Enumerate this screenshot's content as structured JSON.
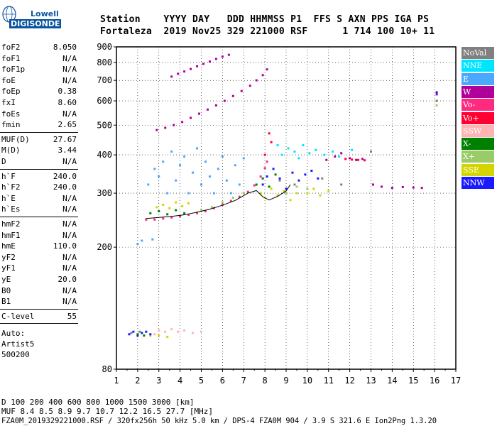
{
  "logo": {
    "brand_top": "Lowell",
    "brand_bottom": "DIGISONDE"
  },
  "header": {
    "labels": "Station    YYYY DAY   DDD HHMMSS P1  FFS S AXN PPS IGA PS",
    "values": "Fortaleza  2019 Nov25 329 221000 RSF      1 714 100 10+ 11"
  },
  "params": {
    "group1": [
      {
        "name": "foF2",
        "value": "8.050"
      },
      {
        "name": "foF1",
        "value": "N/A"
      },
      {
        "name": "foF1p",
        "value": "N/A"
      },
      {
        "name": "foE",
        "value": "N/A"
      },
      {
        "name": "foEp",
        "value": "0.38"
      },
      {
        "name": "fxI",
        "value": "8.60"
      },
      {
        "name": "foEs",
        "value": "N/A"
      },
      {
        "name": "fmin",
        "value": "2.65"
      }
    ],
    "group2": [
      {
        "name": "MUF(D)",
        "value": "27.67"
      },
      {
        "name": "M(D)",
        "value": "3.44"
      },
      {
        "name": "D",
        "value": "N/A"
      }
    ],
    "group3": [
      {
        "name": "h`F",
        "value": "240.0"
      },
      {
        "name": "h`F2",
        "value": "240.0"
      },
      {
        "name": "h`E",
        "value": "N/A"
      },
      {
        "name": "h`Es",
        "value": "N/A"
      }
    ],
    "group4": [
      {
        "name": "hmF2",
        "value": "N/A"
      },
      {
        "name": "hmF1",
        "value": "N/A"
      },
      {
        "name": "hmE",
        "value": "110.0"
      },
      {
        "name": "yF2",
        "value": "N/A"
      },
      {
        "name": "yF1",
        "value": "N/A"
      },
      {
        "name": "yE",
        "value": "20.0"
      },
      {
        "name": "B0",
        "value": "N/A"
      },
      {
        "name": "B1",
        "value": "N/A"
      }
    ],
    "clevel": {
      "name": "C-level",
      "value": "55"
    },
    "auto": [
      "Auto:",
      "Artist5",
      "500200"
    ]
  },
  "legend": [
    {
      "label": "NoVal",
      "color": "#808080",
      "text_color": "#ffffff"
    },
    {
      "label": "NNE",
      "color": "#00e5ff",
      "text_color": "#ffffff"
    },
    {
      "label": "E",
      "color": "#4aa8ff",
      "text_color": "#ffffff"
    },
    {
      "label": "W",
      "color": "#b0009a",
      "text_color": "#ffffff"
    },
    {
      "label": "Vo-",
      "color": "#ff2a7f",
      "text_color": "#ffffff"
    },
    {
      "label": "Vo+",
      "color": "#ff0033",
      "text_color": "#ffffff"
    },
    {
      "label": "SSW",
      "color": "#ffb3b3",
      "text_color": "#ffffff"
    },
    {
      "label": "X-",
      "color": "#008000",
      "text_color": "#ffffff"
    },
    {
      "label": "X+",
      "color": "#99cc66",
      "text_color": "#ffffff"
    },
    {
      "label": "SSE",
      "color": "#d4d400",
      "text_color": "#ffffff"
    },
    {
      "label": "NNW",
      "color": "#1a1aff",
      "text_color": "#ffffff"
    }
  ],
  "bottom": {
    "d_row": "D      100  200  400  600  800 1000 1500 3000 [km]",
    "muf_row": "MUF    8.4  8.5  8.9  9.7 10.7 12.2 16.5 27.7 [MHz]",
    "file_row": "FZA0M_2019329221000.RSF / 320fx256h 50 kHz 5.0 km / DPS-4 FZA0M 904 / 3.9 S 321.6 E   Ion2Png 1.3.20"
  },
  "chart_data": {
    "type": "scatter",
    "xlim": [
      1,
      17
    ],
    "ylim": [
      80,
      900
    ],
    "x_ticks": [
      "1",
      "2",
      "3",
      "4",
      "5",
      "6",
      "7",
      "8",
      "9",
      "10",
      "11",
      "12",
      "13",
      "14",
      "15",
      "16",
      "17"
    ],
    "y_ticks": [
      "80",
      "200",
      "300",
      "400",
      "500",
      "600",
      "700",
      "800",
      "900"
    ],
    "y_scale": "log",
    "grid": true,
    "series": [
      {
        "name": "W",
        "color": "#b0009a",
        "points": [
          [
            2.9,
            482
          ],
          [
            3.3,
            490
          ],
          [
            3.7,
            500
          ],
          [
            4.1,
            512
          ],
          [
            4.5,
            528
          ],
          [
            4.9,
            545
          ],
          [
            5.3,
            562
          ],
          [
            5.7,
            580
          ],
          [
            6.1,
            600
          ],
          [
            6.5,
            622
          ],
          [
            6.9,
            646
          ],
          [
            7.3,
            672
          ],
          [
            7.6,
            700
          ],
          [
            7.9,
            728
          ],
          [
            8.1,
            760
          ]
        ]
      },
      {
        "name": "W",
        "color": "#b0009a",
        "points": [
          [
            3.6,
            720
          ],
          [
            3.9,
            735
          ],
          [
            4.2,
            748
          ],
          [
            4.5,
            762
          ],
          [
            4.8,
            778
          ],
          [
            5.1,
            792
          ],
          [
            5.4,
            806
          ],
          [
            5.7,
            822
          ],
          [
            6.0,
            836
          ],
          [
            6.3,
            848
          ]
        ]
      },
      {
        "name": "Vo-",
        "color": "#ff2a7f",
        "points": [
          [
            2.4,
            246
          ],
          [
            2.8,
            246
          ],
          [
            3.2,
            248
          ],
          [
            3.6,
            250
          ],
          [
            4.0,
            252
          ],
          [
            4.4,
            255
          ],
          [
            4.8,
            258
          ],
          [
            5.2,
            262
          ],
          [
            5.6,
            268
          ],
          [
            6.0,
            275
          ],
          [
            6.4,
            283
          ],
          [
            6.8,
            292
          ],
          [
            7.2,
            303
          ],
          [
            7.5,
            318
          ],
          [
            7.8,
            340
          ],
          [
            8.0,
            362
          ],
          [
            8.1,
            380
          ]
        ]
      },
      {
        "name": "E",
        "color": "#4aa8ff",
        "points": [
          [
            2.5,
            320
          ],
          [
            2.8,
            360
          ],
          [
            3.0,
            340
          ],
          [
            3.2,
            380
          ],
          [
            3.4,
            300
          ],
          [
            3.6,
            410
          ],
          [
            3.8,
            330
          ],
          [
            4.0,
            370
          ],
          [
            4.2,
            395
          ],
          [
            4.4,
            300
          ],
          [
            4.6,
            350
          ],
          [
            4.8,
            420
          ],
          [
            5.0,
            320
          ],
          [
            5.2,
            380
          ],
          [
            5.4,
            340
          ],
          [
            5.6,
            300
          ],
          [
            5.8,
            360
          ],
          [
            6.0,
            395
          ],
          [
            6.2,
            330
          ],
          [
            6.4,
            300
          ],
          [
            6.6,
            370
          ],
          [
            6.8,
            320
          ],
          [
            7.0,
            390
          ],
          [
            2.2,
            210
          ],
          [
            2.0,
            205
          ],
          [
            2.7,
            212
          ]
        ]
      },
      {
        "name": "NNE",
        "color": "#00e5ff",
        "points": [
          [
            8.8,
            400
          ],
          [
            9.1,
            420
          ],
          [
            9.4,
            410
          ],
          [
            9.8,
            430
          ],
          [
            10.1,
            405
          ],
          [
            10.4,
            415
          ],
          [
            10.8,
            400
          ],
          [
            11.2,
            410
          ],
          [
            11.5,
            395
          ],
          [
            12.1,
            415
          ],
          [
            8.6,
            430
          ],
          [
            9.6,
            390
          ]
        ]
      },
      {
        "name": "SSE",
        "color": "#d4d400",
        "points": [
          [
            2.9,
            270
          ],
          [
            3.2,
            275
          ],
          [
            3.5,
            268
          ],
          [
            3.8,
            280
          ],
          [
            4.1,
            272
          ],
          [
            4.4,
            278
          ],
          [
            7.8,
            300
          ],
          [
            8.0,
            290
          ],
          [
            8.3,
            310
          ],
          [
            8.6,
            295
          ],
          [
            8.9,
            305
          ],
          [
            9.2,
            285
          ],
          [
            9.5,
            300
          ],
          [
            10.0,
            300
          ],
          [
            10.3,
            310
          ],
          [
            10.6,
            295
          ],
          [
            11.0,
            305
          ],
          [
            2.6,
            103
          ],
          [
            3.0,
            103
          ],
          [
            3.4,
            102
          ]
        ]
      },
      {
        "name": "NNW",
        "color": "#1a1aff",
        "points": [
          [
            1.6,
            104
          ],
          [
            1.8,
            106
          ],
          [
            2.0,
            103
          ],
          [
            2.2,
            105
          ],
          [
            2.4,
            106
          ],
          [
            2.6,
            104
          ],
          [
            7.9,
            320
          ],
          [
            8.1,
            340
          ],
          [
            8.4,
            360
          ],
          [
            8.7,
            335
          ],
          [
            9.0,
            310
          ],
          [
            9.3,
            350
          ],
          [
            9.6,
            330
          ],
          [
            9.9,
            345
          ],
          [
            10.2,
            355
          ],
          [
            10.5,
            335
          ],
          [
            16.1,
            640
          ]
        ]
      },
      {
        "name": "X-",
        "color": "#008000",
        "points": [
          [
            2.6,
            258
          ],
          [
            3.0,
            262
          ],
          [
            3.4,
            256
          ],
          [
            3.8,
            264
          ],
          [
            4.2,
            258
          ],
          [
            7.6,
            320
          ],
          [
            7.9,
            335
          ],
          [
            8.2,
            315
          ],
          [
            8.5,
            345
          ],
          [
            2.0,
            104
          ],
          [
            2.3,
            103
          ]
        ]
      },
      {
        "name": "X+",
        "color": "#99cc66",
        "points": [
          [
            5.0,
            265
          ],
          [
            5.5,
            270
          ],
          [
            6.0,
            280
          ],
          [
            6.5,
            290
          ],
          [
            7.0,
            300
          ],
          [
            9.0,
            300
          ],
          [
            9.5,
            315
          ],
          [
            10.0,
            310
          ],
          [
            16.1,
            580
          ]
        ]
      },
      {
        "name": "Vo+",
        "color": "#ff0033",
        "points": [
          [
            8.2,
            470
          ],
          [
            8.3,
            440
          ],
          [
            8.0,
            400
          ],
          [
            11.8,
            388
          ],
          [
            12.1,
            386
          ],
          [
            12.4,
            385
          ],
          [
            12.7,
            384
          ]
        ]
      },
      {
        "name": "SSW",
        "color": "#ffb3b3",
        "points": [
          [
            3.0,
            107
          ],
          [
            3.3,
            106
          ],
          [
            3.6,
            108
          ],
          [
            3.9,
            106
          ],
          [
            4.2,
            107
          ],
          [
            4.6,
            105
          ],
          [
            5.0,
            106
          ],
          [
            2.8,
            104
          ]
        ]
      },
      {
        "name": "NoVal",
        "color": "#808080",
        "points": [
          [
            1.7,
            105
          ],
          [
            2.1,
            106
          ],
          [
            8.7,
            330
          ],
          [
            9.4,
            320
          ],
          [
            10.7,
            335
          ],
          [
            11.6,
            320
          ],
          [
            13.0,
            410
          ],
          [
            16.1,
            600
          ]
        ]
      },
      {
        "name": "W",
        "color": "#b0009a",
        "points": [
          [
            12.0,
            390
          ],
          [
            12.3,
            385
          ],
          [
            12.6,
            388
          ],
          [
            13.1,
            320
          ],
          [
            13.5,
            315
          ],
          [
            14.0,
            312
          ],
          [
            14.5,
            314
          ],
          [
            15.0,
            313
          ],
          [
            15.4,
            312
          ],
          [
            16.1,
            630
          ],
          [
            11.3,
            395
          ],
          [
            11.6,
            405
          ],
          [
            10.9,
            385
          ]
        ]
      }
    ],
    "trace_line": {
      "color": "#000000",
      "points": [
        [
          2.4,
          248
        ],
        [
          3.0,
          250
        ],
        [
          3.6,
          252
        ],
        [
          4.2,
          255
        ],
        [
          4.8,
          260
        ],
        [
          5.4,
          266
        ],
        [
          6.0,
          274
        ],
        [
          6.6,
          284
        ],
        [
          7.2,
          300
        ],
        [
          7.6,
          306
        ],
        [
          7.9,
          292
        ],
        [
          8.2,
          285
        ],
        [
          8.6,
          293
        ],
        [
          9.0,
          305
        ],
        [
          9.2,
          320
        ]
      ]
    }
  }
}
